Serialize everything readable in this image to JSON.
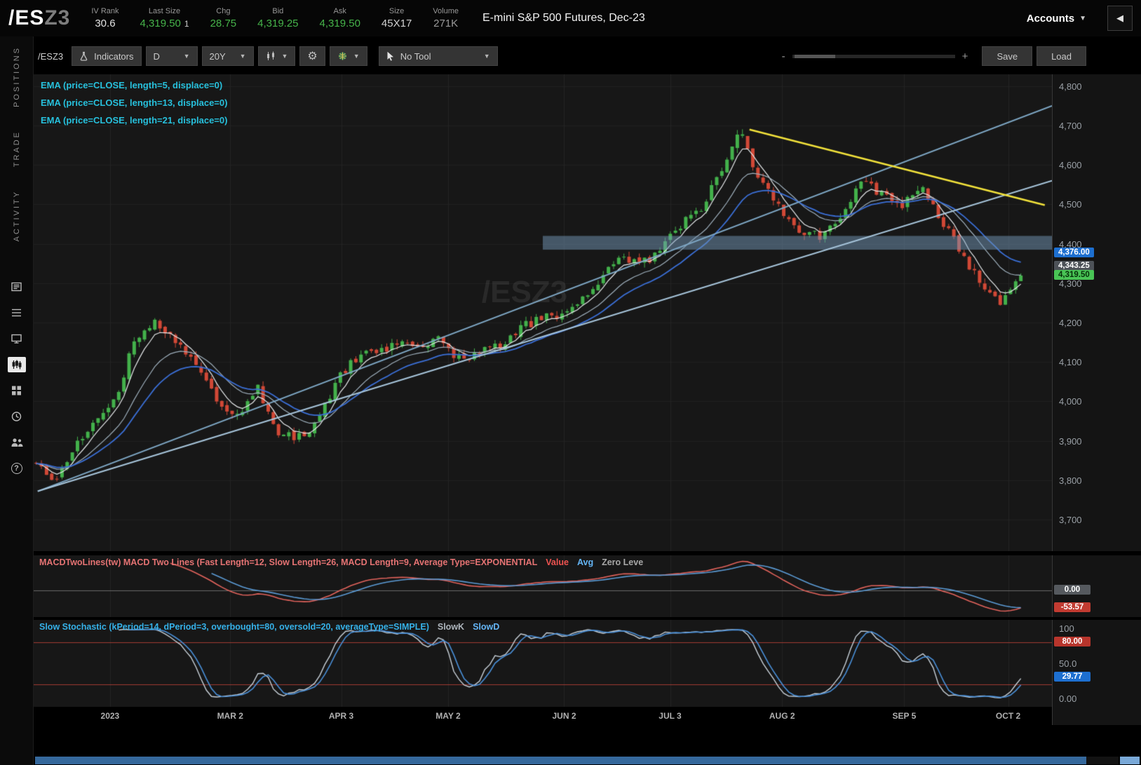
{
  "header": {
    "symbol_root": "/ES",
    "symbol_suffix": "Z3",
    "fields": [
      {
        "label": "IV Rank",
        "value": "30.6",
        "color": "#e3e3e3"
      },
      {
        "label": "Last Size",
        "value": "4,319.50",
        "extra": "1",
        "color": "#46b44a"
      },
      {
        "label": "Chg",
        "value": "28.75",
        "color": "#46b44a"
      },
      {
        "label": "Bid",
        "value": "4,319.25",
        "color": "#46b44a"
      },
      {
        "label": "Ask",
        "value": "4,319.50",
        "color": "#46b44a"
      },
      {
        "label": "Size",
        "value": "45X17",
        "color": "#d2d2d2"
      },
      {
        "label": "Volume",
        "value": "271K",
        "color": "#9a9a9a"
      }
    ],
    "description": "E-mini S&P 500 Futures, Dec-23",
    "accounts_label": "Accounts",
    "collapse_icon": "◀"
  },
  "sidebar": {
    "tabs": [
      "POSITIONS",
      "TRADE",
      "ACTIVITY"
    ],
    "icons": [
      "news-icon",
      "watchlist-icon",
      "monitor-icon",
      "charts-icon",
      "dashboard-icon",
      "history-icon",
      "community-icon",
      "help-icon"
    ],
    "active_icon": "charts-icon",
    "help_glyph": "?"
  },
  "toolbar": {
    "symbol": "/ESZ3",
    "indicators_label": "Indicators",
    "timeframe_label": "D",
    "range_label": "20Y",
    "no_tool_label": "No Tool",
    "save_label": "Save",
    "load_label": "Load",
    "zoom_minus": "-",
    "zoom_plus": "+",
    "caret": "▼"
  },
  "legend": {
    "color": "#27c0dc",
    "studies": [
      "EMA (price=CLOSE, length=5, displace=0)",
      "EMA (price=CLOSE, length=13, displace=0)",
      "EMA (price=CLOSE, length=21, displace=0)"
    ]
  },
  "macd": {
    "title": "MACDTwoLines(tw) MACD Two Lines (Fast Length=12, Slow Length=26, MACD Length=9, Average Type=EXPONENTIAL",
    "title_color": "#e57373",
    "plot_labels": [
      {
        "text": "Value",
        "color": "#ef5350"
      },
      {
        "text": "Avg",
        "color": "#64b5f6"
      },
      {
        "text": "Zero Leve",
        "color": "#a8a8a8"
      }
    ],
    "fast": 12,
    "slow": 26,
    "signal": 9,
    "value_color": "#e2635c",
    "avg_color": "#5b9bd5",
    "zero_line_color": "#6a6a6a",
    "zero_bubble": {
      "label": "0.00",
      "bg": "#55595e",
      "fg": "#ffffff"
    },
    "value_bubble": {
      "label": "-53.57",
      "bg": "#c23b31",
      "fg": "#ffffff"
    }
  },
  "stoch": {
    "title": "Slow Stochastic (kPeriod=14, dPeriod=3, overbought=80, oversold=20, averageType=SIMPLE)",
    "title_color": "#35b1e8",
    "plot_labels": [
      {
        "text": "SlowK",
        "color": "#aeb6bd"
      },
      {
        "text": "SlowD",
        "color": "#64b5f6"
      }
    ],
    "k_period": 14,
    "d_period": 3,
    "overbought": 80,
    "oversold": 20,
    "k_color": "#c8d1d9",
    "d_color": "#4a90d9",
    "band_line_color": "#a23b33",
    "axis_labels": [
      {
        "v": 100,
        "label": "100"
      },
      {
        "v": 50,
        "label": "50.0"
      },
      {
        "v": 0,
        "label": "0.00"
      }
    ],
    "bubbles": [
      {
        "v": 80,
        "label": "80.00",
        "bg": "#b8352c",
        "fg": "#ffffff"
      },
      {
        "v": 29.77,
        "label": "29.77",
        "bg": "#1d6fd0",
        "fg": "#ffffff"
      }
    ]
  },
  "chart_data": {
    "type": "candlestick",
    "symbol": "/ESZ3",
    "watermark": "/ESZ3",
    "title": "E-mini S&P 500 Futures, Dec-23 — Daily",
    "days": 192,
    "right_pad_frac": 0.028,
    "anchors": [
      3850,
      3798,
      3888,
      3962,
      4018,
      4168,
      4205,
      4150,
      4085,
      4000,
      3958,
      4040,
      3925,
      3910,
      3945,
      4058,
      4112,
      4125,
      4148,
      4128,
      4165,
      4108,
      4122,
      4138,
      4185,
      4208,
      4222,
      4258,
      4302,
      4368,
      4348,
      4372,
      4448,
      4478,
      4580,
      4685,
      4560,
      4488,
      4438,
      4420,
      4460,
      4562,
      4528,
      4495,
      4548,
      4462,
      4385,
      4295,
      4248,
      4318
    ],
    "last_close": 4319.5,
    "candle_up_color": "#43b14b",
    "candle_down_color": "#d14836",
    "emas": [
      {
        "length": 5,
        "color": "#e6e9eb"
      },
      {
        "length": 13,
        "color": "#9fb0bd"
      },
      {
        "length": 21,
        "color": "#3b6fd6"
      }
    ],
    "price_axis": {
      "min": 3620,
      "max": 4830,
      "ticks": [
        {
          "value": 4800,
          "label": "4,800"
        },
        {
          "value": 4700,
          "label": "4,700"
        },
        {
          "value": 4600,
          "label": "4,600"
        },
        {
          "value": 4500,
          "label": "4,500"
        },
        {
          "value": 4400,
          "label": "4,400"
        },
        {
          "value": 4300,
          "label": "4,300"
        },
        {
          "value": 4200,
          "label": "4,200"
        },
        {
          "value": 4100,
          "label": "4,100"
        },
        {
          "value": 4000,
          "label": "4,000"
        },
        {
          "value": 3900,
          "label": "3,900"
        },
        {
          "value": 3800,
          "label": "3,800"
        },
        {
          "value": 3700,
          "label": "3,700"
        }
      ]
    },
    "x_labels": [
      {
        "f": 0.075,
        "label": "2023"
      },
      {
        "f": 0.193,
        "label": "MAR 2"
      },
      {
        "f": 0.302,
        "label": "APR 3"
      },
      {
        "f": 0.407,
        "label": "MAY 2"
      },
      {
        "f": 0.521,
        "label": "JUN 2"
      },
      {
        "f": 0.625,
        "label": "JUL 3"
      },
      {
        "f": 0.735,
        "label": "AUG 2"
      },
      {
        "f": 0.855,
        "label": "SEP 5"
      },
      {
        "f": 0.957,
        "label": "OCT 2"
      }
    ],
    "price_bubbles": [
      {
        "label": "4,376.00",
        "price": 4376,
        "bg": "#1d6fd0",
        "fg": "#ffffff"
      },
      {
        "label": "4,343.25",
        "price": 4343.25,
        "bg": "#4d5258",
        "fg": "#ffffff"
      },
      {
        "label": "4,319.50",
        "price": 4319.5,
        "bg": "#49c455",
        "fg": "#06300a"
      }
    ],
    "drawings": {
      "support_band": {
        "f0": 0.5,
        "f1": 1.0,
        "price_low": 4385,
        "price_high": 4420,
        "color": "rgba(116,152,184,0.50)"
      },
      "trendlines": [
        {
          "f0": 0.004,
          "p0": 3772,
          "f1": 1.0,
          "p1": 4750,
          "color": "#7fa8c6",
          "width": 2
        },
        {
          "f0": 0.004,
          "p0": 3772,
          "f1": 1.0,
          "p1": 4560,
          "color": "#a8c6dc",
          "width": 2
        },
        {
          "f0": 0.703,
          "p0": 4690,
          "f1": 0.993,
          "p1": 4498,
          "color": "#f2e23b",
          "width": 2.5
        }
      ]
    }
  }
}
